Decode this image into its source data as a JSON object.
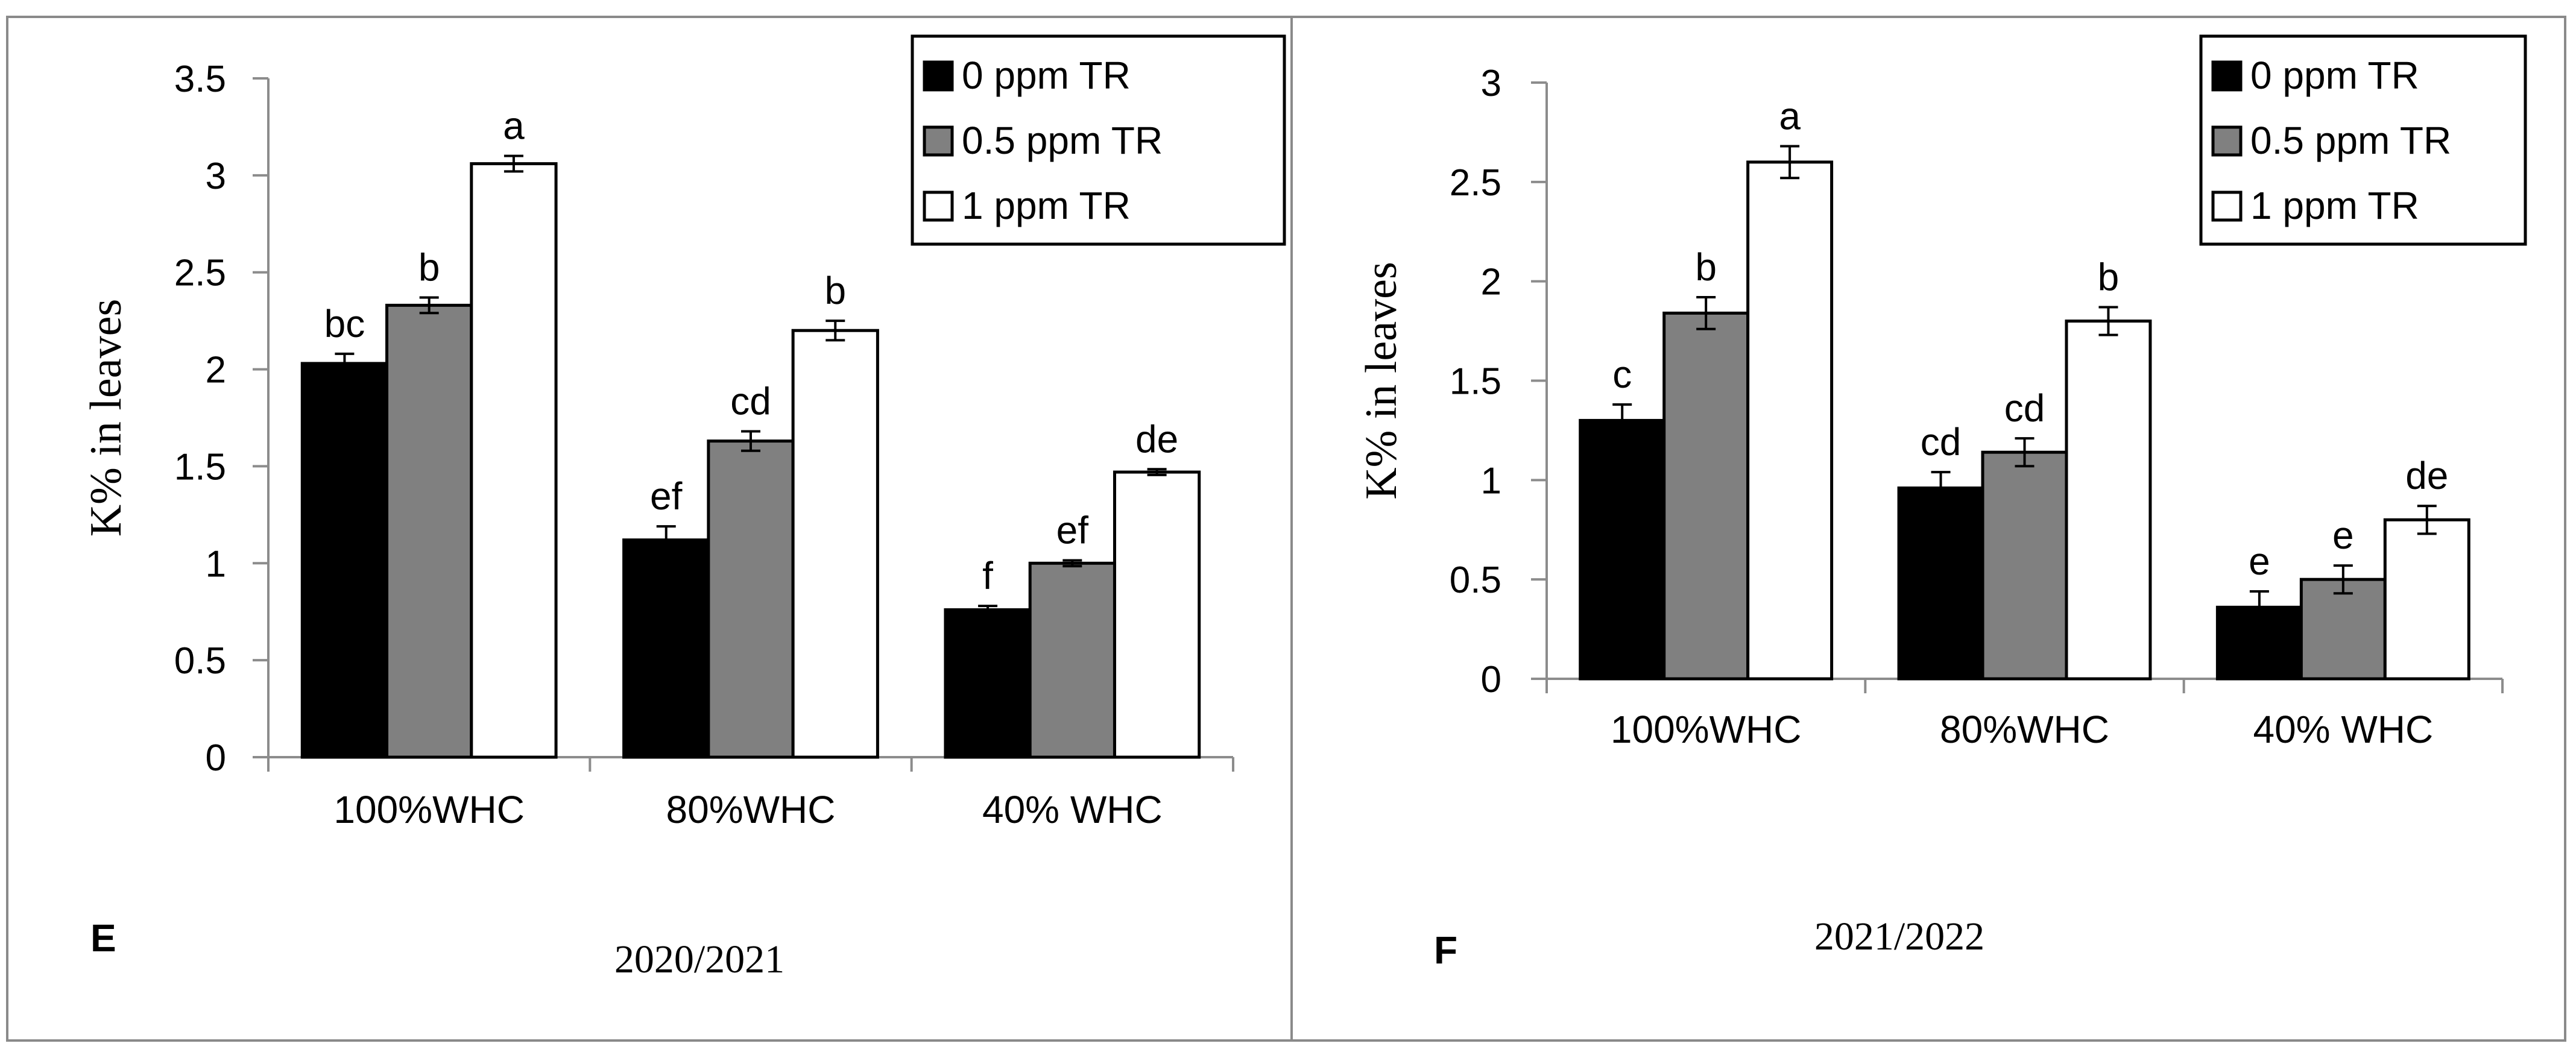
{
  "chart_data": [
    {
      "type": "bar",
      "panel_label": "E",
      "title": "2020/2021",
      "ylabel": "K% in leaves",
      "xlabel": "",
      "ylim": [
        0,
        3.5
      ],
      "ytick_step": 0.5,
      "yticks": [
        "0",
        "0.5",
        "1",
        "1.5",
        "2",
        "2.5",
        "3",
        "3.5"
      ],
      "categories": [
        "100%WHC",
        "80%WHC",
        "40% WHC"
      ],
      "legend_position": "top-right",
      "series": [
        {
          "name": "0 ppm TR",
          "color": "#000000",
          "values": [
            2.03,
            1.12,
            0.76
          ],
          "errors": [
            0.05,
            0.07,
            0.02
          ],
          "letters": [
            "bc",
            "ef",
            "f"
          ]
        },
        {
          "name": "0.5 ppm TR",
          "color": "#808080",
          "values": [
            2.33,
            1.63,
            1.0
          ],
          "errors": [
            0.04,
            0.05,
            0.015
          ],
          "letters": [
            "b",
            "cd",
            "ef"
          ]
        },
        {
          "name": "1 ppm TR",
          "color": "#ffffff",
          "values": [
            3.06,
            2.2,
            1.47
          ],
          "errors": [
            0.04,
            0.05,
            0.015
          ],
          "letters": [
            "a",
            "b",
            "de"
          ]
        }
      ]
    },
    {
      "type": "bar",
      "panel_label": "F",
      "title": "2021/2022",
      "ylabel": "K% in leaves",
      "xlabel": "",
      "ylim": [
        0,
        3
      ],
      "ytick_step": 0.5,
      "yticks": [
        "0",
        "0.5",
        "1",
        "1.5",
        "2",
        "2.5",
        "3"
      ],
      "categories": [
        "100%WHC",
        "80%WHC",
        "40% WHC"
      ],
      "legend_position": "top-right",
      "series": [
        {
          "name": "0 ppm TR",
          "color": "#000000",
          "values": [
            1.3,
            0.96,
            0.36
          ],
          "errors": [
            0.08,
            0.08,
            0.08
          ],
          "letters": [
            "c",
            "cd",
            "e"
          ]
        },
        {
          "name": "0.5 ppm TR",
          "color": "#808080",
          "values": [
            1.84,
            1.14,
            0.5
          ],
          "errors": [
            0.08,
            0.07,
            0.07
          ],
          "letters": [
            "b",
            "cd",
            "e"
          ]
        },
        {
          "name": "1 ppm TR",
          "color": "#ffffff",
          "values": [
            2.6,
            1.8,
            0.8
          ],
          "errors": [
            0.08,
            0.07,
            0.07
          ],
          "letters": [
            "a",
            "b",
            "de"
          ]
        }
      ]
    }
  ]
}
